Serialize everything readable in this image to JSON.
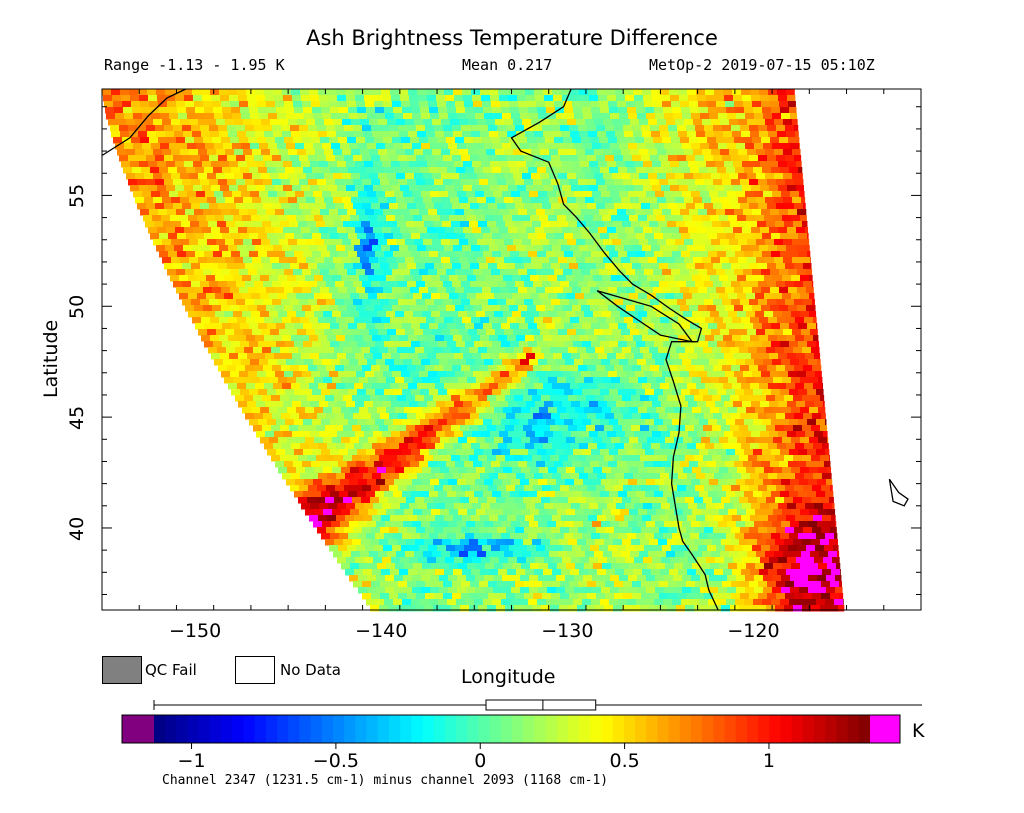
{
  "title": "Ash Brightness Temperature Difference",
  "range_text": "Range -1.13 - 1.95 K",
  "mean_text": "Mean 0.217",
  "satellite_text": "MetOp-2 2019-07-15 05:10Z",
  "map": {
    "lon_range": [
      -155,
      -111
    ],
    "lat_range": [
      36.3,
      59.8
    ],
    "lon_ticks": [
      {
        "value": -150,
        "label": "−150"
      },
      {
        "value": -140,
        "label": "−140"
      },
      {
        "value": -130,
        "label": "−130"
      },
      {
        "value": -120,
        "label": "−120"
      }
    ],
    "lat_ticks": [
      {
        "value": 40,
        "label": "40"
      },
      {
        "value": 45,
        "label": "45"
      },
      {
        "value": 50,
        "label": "50"
      },
      {
        "value": 55,
        "label": "55"
      }
    ],
    "xlabel": "Longitude",
    "ylabel": "Latitude"
  },
  "legend": {
    "qc_fail": {
      "label": "QC Fail",
      "color": "#808080"
    },
    "no_data": {
      "label": "No Data",
      "color": "#ffffff"
    }
  },
  "colorbar": {
    "range": [
      -1.13,
      1.35
    ],
    "unit": "K",
    "ticks": [
      {
        "value": -1,
        "label": "−1"
      },
      {
        "value": -0.5,
        "label": "−0.5"
      },
      {
        "value": 0,
        "label": "0"
      },
      {
        "value": 0.5,
        "label": "0.5"
      },
      {
        "value": 1,
        "label": "1"
      }
    ],
    "under_color": "#800080",
    "over_color": "#ff00ff",
    "boxplot": {
      "min": -1.13,
      "q1": 0.02,
      "median": 0.217,
      "q3": 0.4,
      "max": 1.95
    }
  },
  "channel_text": "Channel 2347 (1231.5 cm-1) minus channel 2093 (1168 cm-1)",
  "field_features": {
    "ash_plume": {
      "start_lon": -143.5,
      "start_lat": 40.5,
      "end_lon": -132,
      "end_lat": 47.7,
      "peak_value": 1.1
    },
    "negative_patches": [
      "-136 to -129 E, 43-48 N",
      "-137 to -130 E, 38-40 N"
    ],
    "high_values_southeast": "-119 to -116 E, 36.5-40 N"
  },
  "colors": {
    "jet_low": "#00008f",
    "jet_high": "#800000",
    "coast": "#000000"
  }
}
